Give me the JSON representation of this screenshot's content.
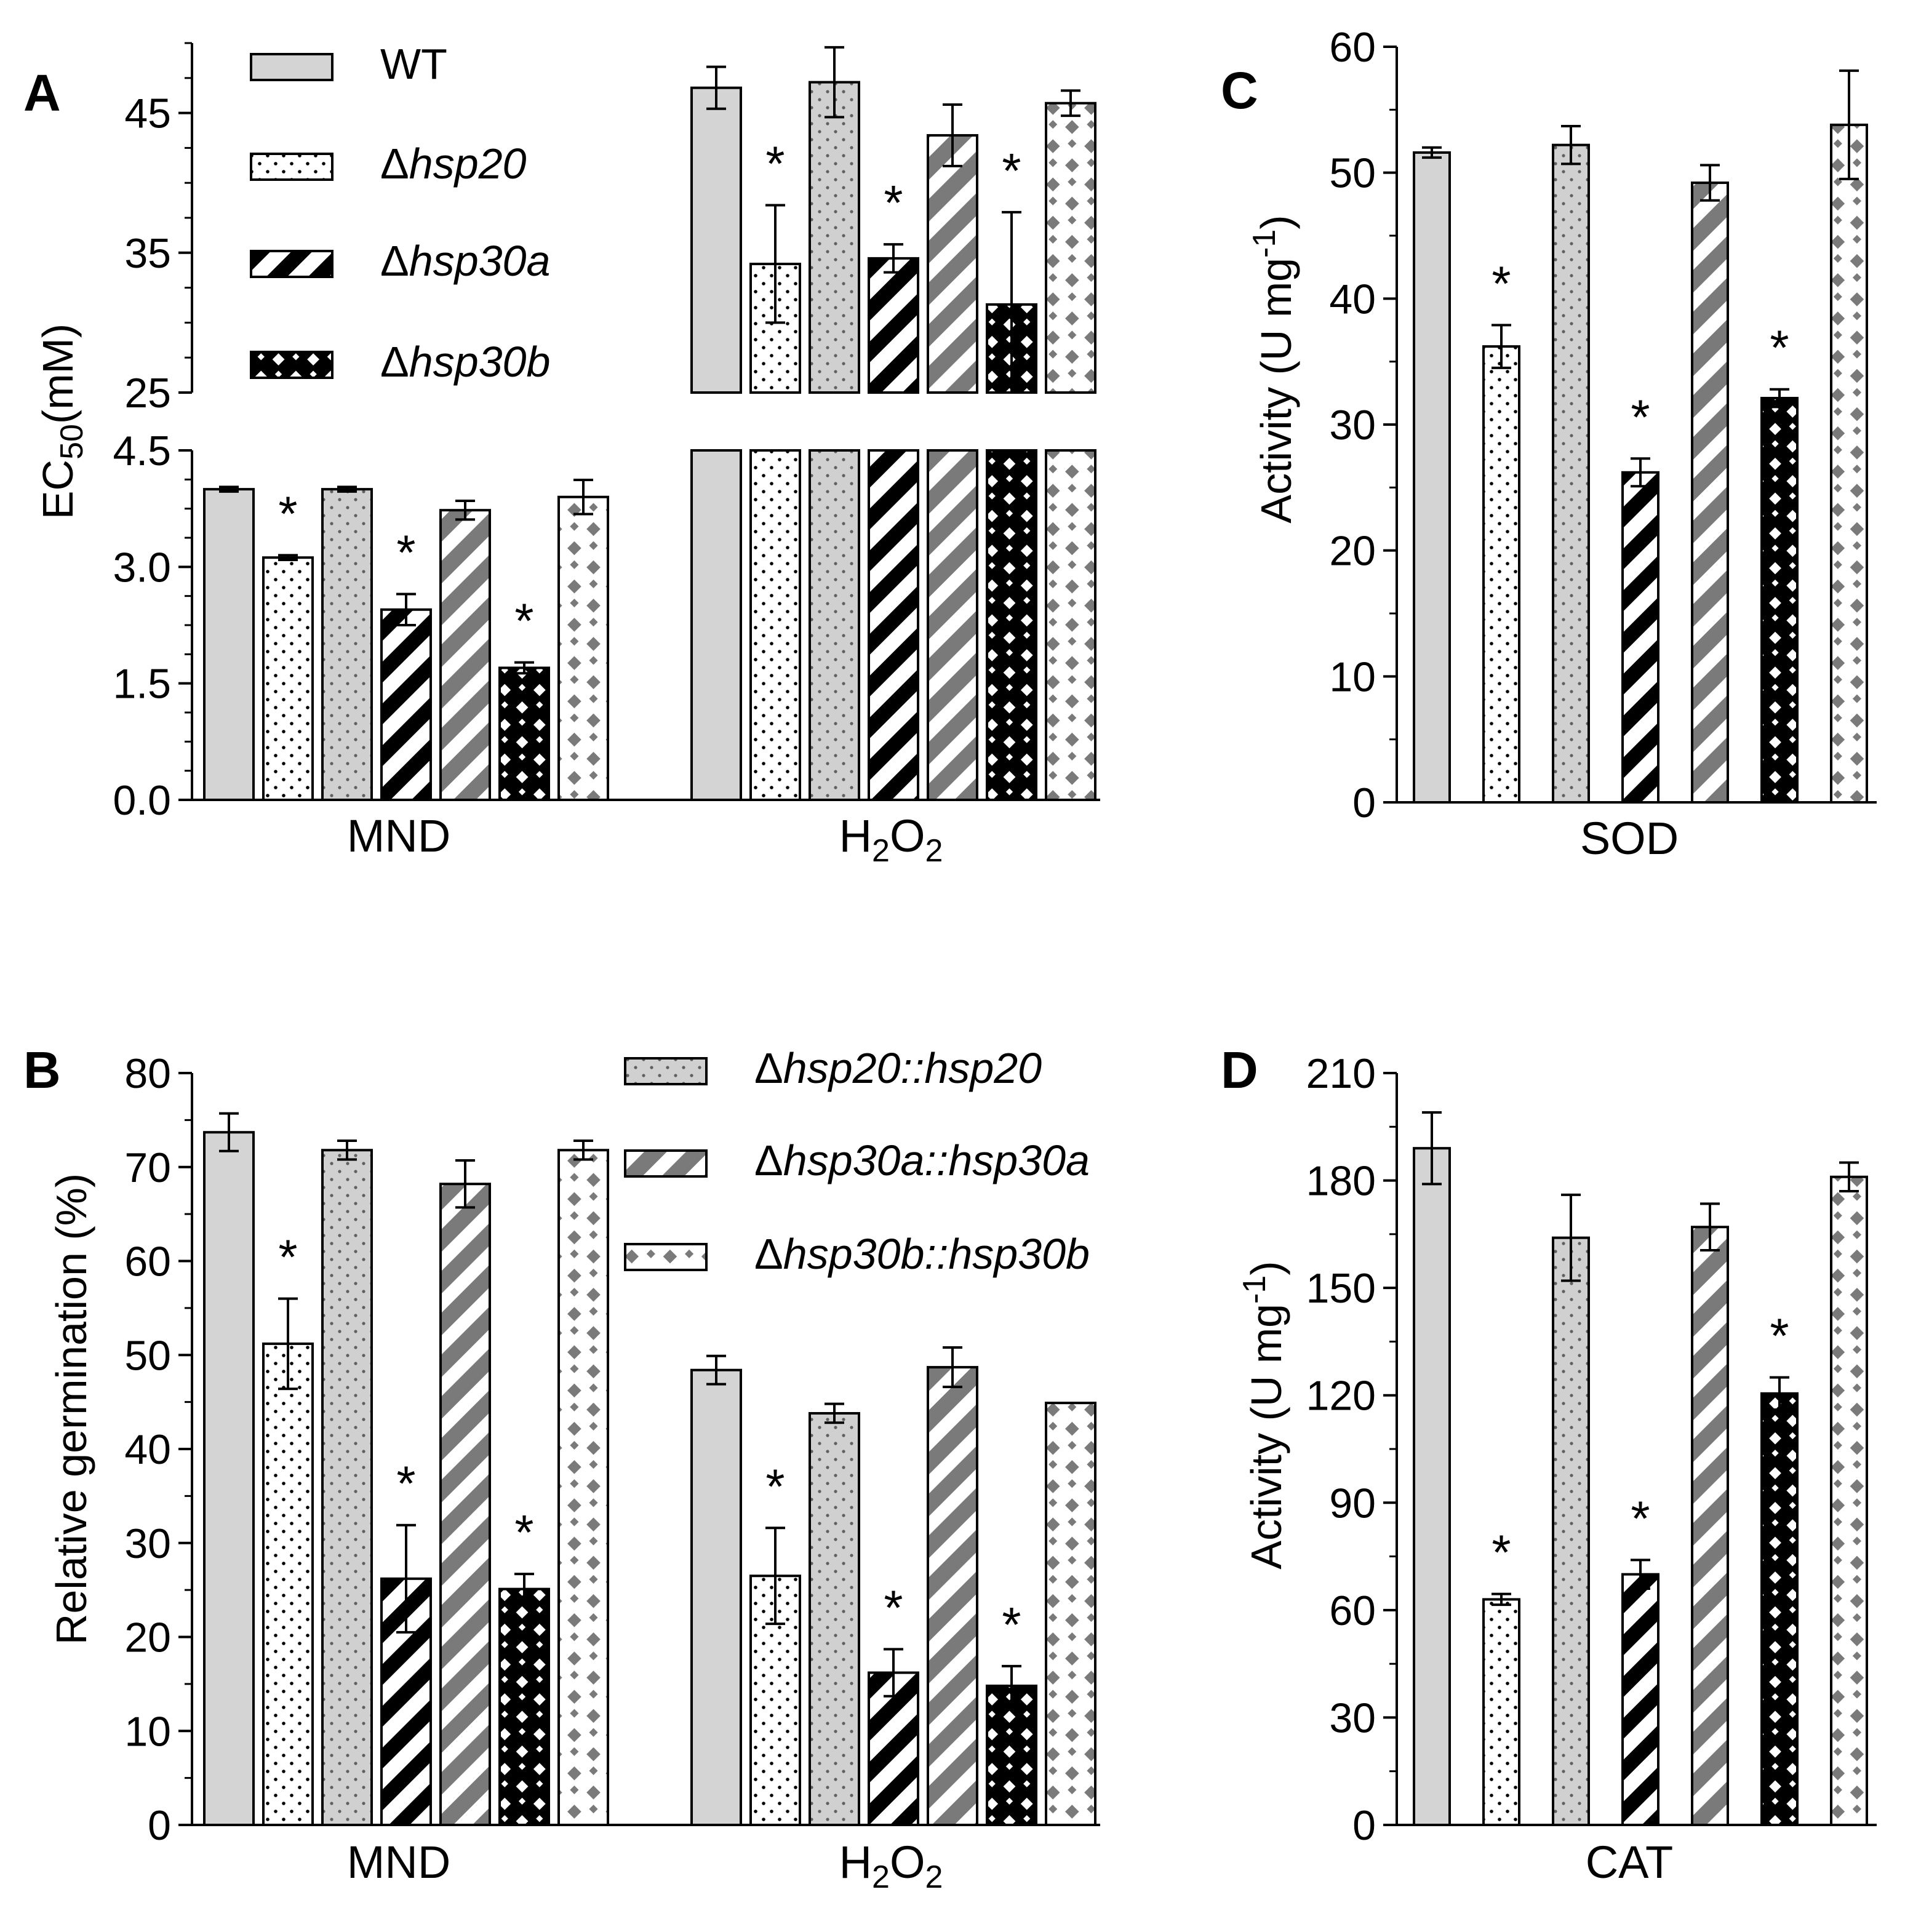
{
  "figure": {
    "legend": [
      {
        "key": "wt",
        "label": "WT",
        "pattern": "solid-gray"
      },
      {
        "key": "d20",
        "label": "Δhsp20",
        "pattern": "dots"
      },
      {
        "key": "d30a",
        "label": "Δhsp30a",
        "pattern": "black-diagonal"
      },
      {
        "key": "d30b",
        "label": "Δhsp30b",
        "pattern": "black-checker"
      },
      {
        "key": "c20",
        "label": "Δhsp20::hsp20",
        "pattern": "gray-dots"
      },
      {
        "key": "c30a",
        "label": "Δhsp30a::hsp30a",
        "pattern": "gray-diagonal"
      },
      {
        "key": "c30b",
        "label": "Δhsp30b::hsp30b",
        "pattern": "gray-diamonds"
      }
    ],
    "colors": {
      "wt": "#d4d4d4",
      "gray_pattern": "#7a7a7a",
      "black": "#000000",
      "white": "#ffffff"
    }
  },
  "chart_data": [
    {
      "panel": "A",
      "type": "bar",
      "ylabel": "EC50(mM)",
      "ylabel_parts": [
        "EC",
        "50",
        "(mM)"
      ],
      "y_axis_break": {
        "lower_range": [
          0,
          4.5
        ],
        "upper_range": [
          25,
          50
        ]
      },
      "lower_ticks": [
        "0.0",
        "1.5",
        "3.0",
        "4.5"
      ],
      "upper_ticks": [
        "25",
        "35",
        "45"
      ],
      "categories": [
        "MND",
        "H2O2"
      ],
      "category_labels": [
        [
          "MND"
        ],
        [
          "H",
          "2",
          "O",
          "2"
        ]
      ],
      "series_order": [
        "WT",
        "Δhsp20",
        "Δhsp20::hsp20",
        "Δhsp30a",
        "Δhsp30a::hsp30a",
        "Δhsp30b",
        "Δhsp30b::hsp30b"
      ],
      "series": [
        {
          "name": "WT",
          "values": [
            4.0,
            46.8
          ],
          "errors": [
            0.03,
            1.5
          ],
          "significant": [
            false,
            false
          ]
        },
        {
          "name": "Δhsp20",
          "values": [
            3.12,
            34.2
          ],
          "errors": [
            0.03,
            4.2
          ],
          "significant": [
            true,
            true
          ]
        },
        {
          "name": "Δhsp20::hsp20",
          "values": [
            4.0,
            47.2
          ],
          "errors": [
            0.03,
            2.5
          ],
          "significant": [
            false,
            false
          ]
        },
        {
          "name": "Δhsp30a",
          "values": [
            2.45,
            34.6
          ],
          "errors": [
            0.2,
            1.0
          ],
          "significant": [
            true,
            true
          ]
        },
        {
          "name": "Δhsp30a::hsp30a",
          "values": [
            3.73,
            43.4
          ],
          "errors": [
            0.12,
            2.2
          ],
          "significant": [
            false,
            false
          ]
        },
        {
          "name": "Δhsp30b",
          "values": [
            1.7,
            31.3
          ],
          "errors": [
            0.07,
            6.6
          ],
          "significant": [
            true,
            true
          ]
        },
        {
          "name": "Δhsp30b::hsp30b",
          "values": [
            3.9,
            45.7
          ],
          "errors": [
            0.22,
            0.9
          ],
          "significant": [
            false,
            false
          ]
        }
      ]
    },
    {
      "panel": "B",
      "type": "bar",
      "ylabel": "Relative germination (%)",
      "ylim": [
        0,
        80
      ],
      "yticks": [
        "0",
        "10",
        "20",
        "30",
        "40",
        "50",
        "60",
        "70",
        "80"
      ],
      "categories": [
        "MND",
        "H2O2"
      ],
      "category_labels": [
        [
          "MND"
        ],
        [
          "H",
          "2",
          "O",
          "2"
        ]
      ],
      "series": [
        {
          "name": "WT",
          "values": [
            73.7,
            48.4
          ],
          "errors": [
            2.0,
            1.5
          ],
          "significant": [
            false,
            false
          ]
        },
        {
          "name": "Δhsp20",
          "values": [
            51.2,
            26.5
          ],
          "errors": [
            4.8,
            5.1
          ],
          "significant": [
            true,
            true
          ]
        },
        {
          "name": "Δhsp20::hsp20",
          "values": [
            71.8,
            43.8
          ],
          "errors": [
            1.0,
            1.0
          ],
          "significant": [
            false,
            false
          ]
        },
        {
          "name": "Δhsp30a",
          "values": [
            26.2,
            16.2
          ],
          "errors": [
            5.7,
            2.5
          ],
          "significant": [
            true,
            true
          ]
        },
        {
          "name": "Δhsp30a::hsp30a",
          "values": [
            68.2,
            48.7
          ],
          "errors": [
            2.5,
            2.1
          ],
          "significant": [
            false,
            false
          ]
        },
        {
          "name": "Δhsp30b",
          "values": [
            25.1,
            14.8
          ],
          "errors": [
            1.6,
            2.1
          ],
          "significant": [
            true,
            true
          ]
        },
        {
          "name": "Δhsp30b::hsp30b",
          "values": [
            71.8,
            44.9
          ],
          "errors": [
            1.0,
            0
          ],
          "significant": [
            false,
            false
          ]
        }
      ]
    },
    {
      "panel": "C",
      "type": "bar",
      "ylabel": "Activity (U mg-1)",
      "ylabel_parts": [
        "Activity (U mg",
        "-1",
        ")"
      ],
      "ylim": [
        0,
        60
      ],
      "yticks": [
        "0",
        "10",
        "20",
        "30",
        "40",
        "50",
        "60"
      ],
      "categories": [
        "SOD"
      ],
      "series": [
        {
          "name": "WT",
          "values": [
            51.6
          ],
          "errors": [
            0.4
          ],
          "significant": [
            false
          ]
        },
        {
          "name": "Δhsp20",
          "values": [
            36.2
          ],
          "errors": [
            1.7
          ],
          "significant": [
            true
          ]
        },
        {
          "name": "Δhsp20::hsp20",
          "values": [
            52.2
          ],
          "errors": [
            1.5
          ],
          "significant": [
            false
          ]
        },
        {
          "name": "Δhsp30a",
          "values": [
            26.2
          ],
          "errors": [
            1.1
          ],
          "significant": [
            true
          ]
        },
        {
          "name": "Δhsp30a::hsp30a",
          "values": [
            49.2
          ],
          "errors": [
            1.4
          ],
          "significant": [
            false
          ]
        },
        {
          "name": "Δhsp30b",
          "values": [
            32.1
          ],
          "errors": [
            0.7
          ],
          "significant": [
            true
          ]
        },
        {
          "name": "Δhsp30b::hsp30b",
          "values": [
            53.8
          ],
          "errors": [
            4.3
          ],
          "significant": [
            false
          ]
        }
      ]
    },
    {
      "panel": "D",
      "type": "bar",
      "ylabel": "Activity (U mg-1)",
      "ylabel_parts": [
        "Activity (U mg",
        "-1",
        ")"
      ],
      "ylim": [
        0,
        210
      ],
      "yticks": [
        "0",
        "30",
        "60",
        "90",
        "120",
        "150",
        "180",
        "210"
      ],
      "categories": [
        "CAT"
      ],
      "series": [
        {
          "name": "WT",
          "values": [
            189
          ],
          "errors": [
            10
          ],
          "significant": [
            false
          ]
        },
        {
          "name": "Δhsp20",
          "values": [
            63
          ],
          "errors": [
            1.5
          ],
          "significant": [
            true
          ]
        },
        {
          "name": "Δhsp20::hsp20",
          "values": [
            164
          ],
          "errors": [
            12
          ],
          "significant": [
            false
          ]
        },
        {
          "name": "Δhsp30a",
          "values": [
            70
          ],
          "errors": [
            4
          ],
          "significant": [
            true
          ]
        },
        {
          "name": "Δhsp30a::hsp30a",
          "values": [
            167
          ],
          "errors": [
            6.5
          ],
          "significant": [
            false
          ]
        },
        {
          "name": "Δhsp30b",
          "values": [
            120.5
          ],
          "errors": [
            4.5
          ],
          "significant": [
            true
          ]
        },
        {
          "name": "Δhsp30b::hsp30b",
          "values": [
            181
          ],
          "errors": [
            4
          ],
          "significant": [
            false
          ]
        }
      ]
    }
  ],
  "panel_labels": [
    "A",
    "B",
    "C",
    "D"
  ]
}
